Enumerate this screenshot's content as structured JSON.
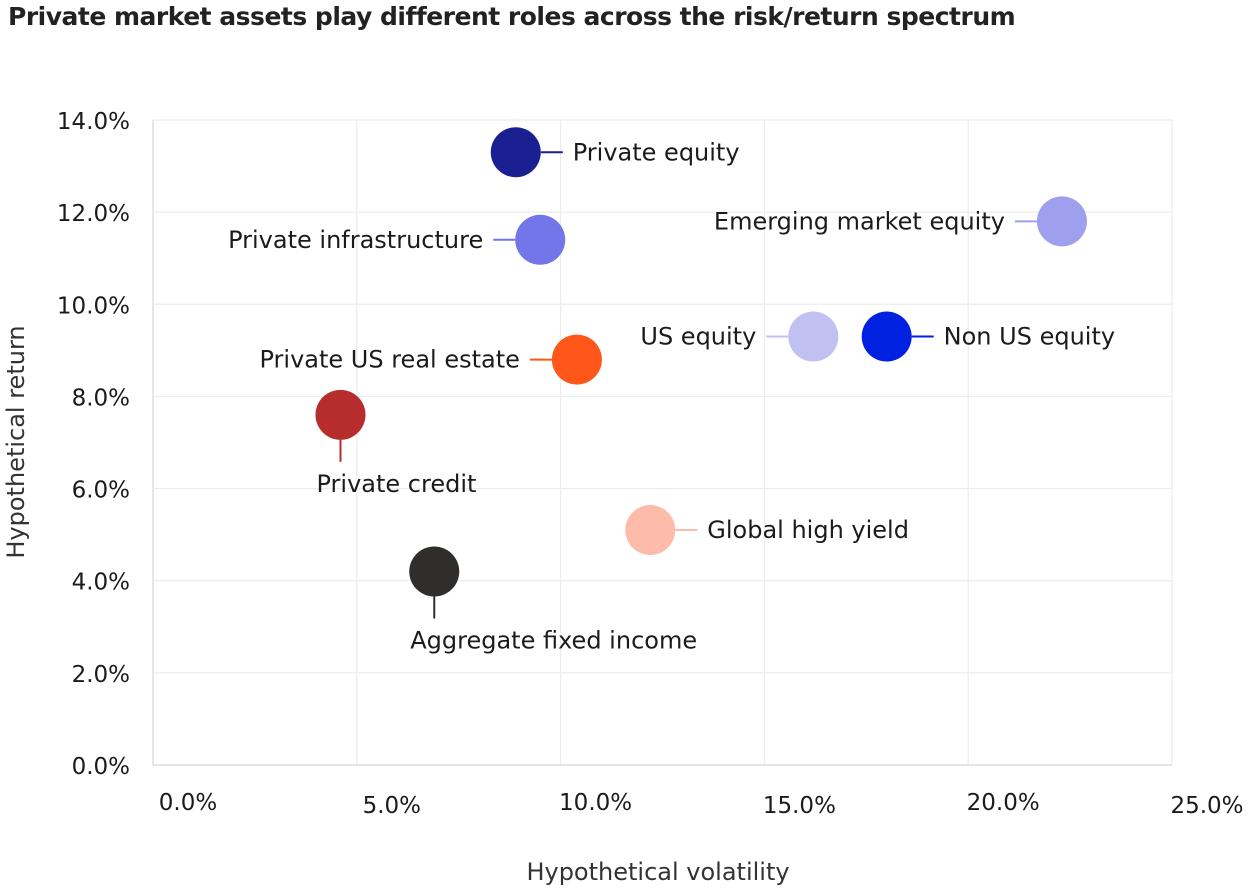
{
  "chart_data": {
    "type": "scatter",
    "title": "Private market assets play different roles across the risk/return spectrum",
    "xlabel": "Hypothetical volatility",
    "ylabel": "Hypothetical return",
    "xlim": [
      0,
      25
    ],
    "ylim": [
      0,
      14
    ],
    "x_ticks": [
      "0.0%",
      "5.0%",
      "10.0%",
      "15.0%",
      "20.0%",
      "25.0%"
    ],
    "y_ticks": [
      "0.0%",
      "2.0%",
      "4.0%",
      "6.0%",
      "8.0%",
      "10.0%",
      "12.0%",
      "14.0%"
    ],
    "grid": true,
    "points": [
      {
        "name": "Private equity",
        "x": 8.9,
        "y": 13.3,
        "color": "#1a1f91",
        "label_side": "right"
      },
      {
        "name": "Private infrastructure",
        "x": 9.5,
        "y": 11.4,
        "color": "#7276e8",
        "label_side": "left"
      },
      {
        "name": "Emerging market equity",
        "x": 22.3,
        "y": 11.8,
        "color": "#9ea0ee",
        "label_side": "left"
      },
      {
        "name": "US equity",
        "x": 16.2,
        "y": 9.3,
        "color": "#c0c1f0",
        "label_side": "left"
      },
      {
        "name": "Non US equity",
        "x": 18.0,
        "y": 9.3,
        "color": "#0021e0",
        "label_side": "right"
      },
      {
        "name": "Private US real estate",
        "x": 10.4,
        "y": 8.8,
        "color": "#ff5719",
        "label_side": "left"
      },
      {
        "name": "Private credit",
        "x": 4.6,
        "y": 7.6,
        "color": "#b72d2e",
        "label_side": "below"
      },
      {
        "name": "Global high yield",
        "x": 12.2,
        "y": 5.1,
        "color": "#fdbcaa",
        "label_side": "right"
      },
      {
        "name": "Aggregate fixed income",
        "x": 6.9,
        "y": 4.2,
        "color": "#2f2e2c",
        "label_side": "below"
      }
    ]
  }
}
